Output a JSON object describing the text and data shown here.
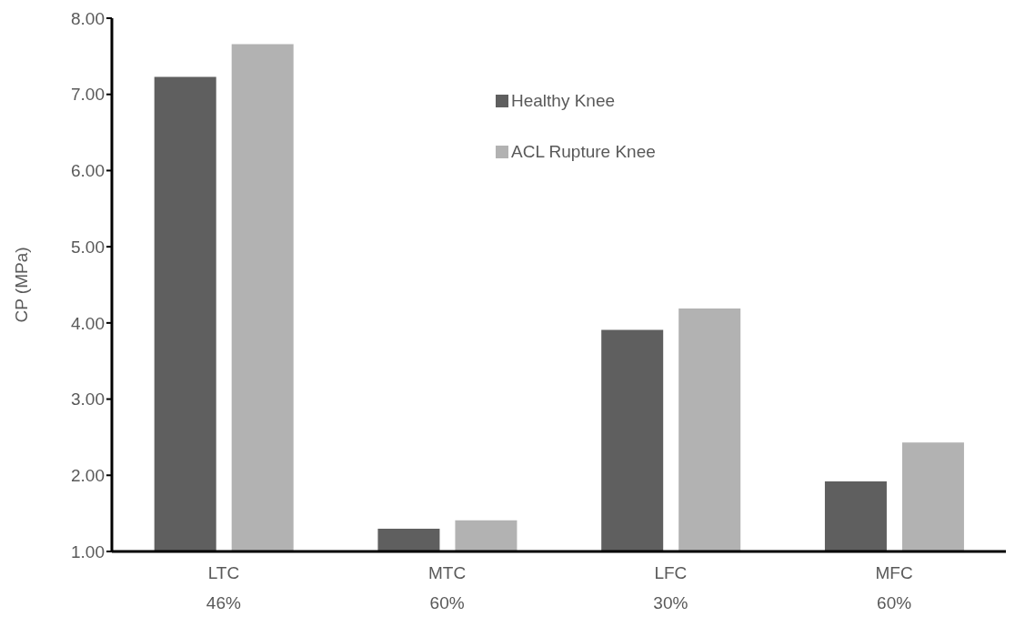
{
  "chart_data": {
    "type": "bar",
    "ylabel": "CP (MPa)",
    "categories": [
      "LTC\n46%",
      "MTC\n60%",
      "LFC\n30%",
      "MFC\n60%"
    ],
    "series": [
      {
        "name": "Healthy Knee",
        "color": "#5f5f5f",
        "values": [
          7.23,
          1.3,
          3.91,
          1.92
        ]
      },
      {
        "name": "ACL Rupture Knee",
        "color": "#b2b2b2",
        "values": [
          7.66,
          1.41,
          4.19,
          2.43
        ]
      }
    ],
    "ylim": [
      1,
      8
    ],
    "yticks": [
      {
        "value": 1,
        "label": "1.00"
      },
      {
        "value": 2,
        "label": "2.00"
      },
      {
        "value": 3,
        "label": "3.00"
      },
      {
        "value": 4,
        "label": "4.00"
      },
      {
        "value": 5,
        "label": "5.00"
      },
      {
        "value": 6,
        "label": "6.00"
      },
      {
        "value": 7,
        "label": "7.00"
      },
      {
        "value": 8,
        "label": "8.00"
      }
    ],
    "grid": false,
    "legend": "top"
  }
}
